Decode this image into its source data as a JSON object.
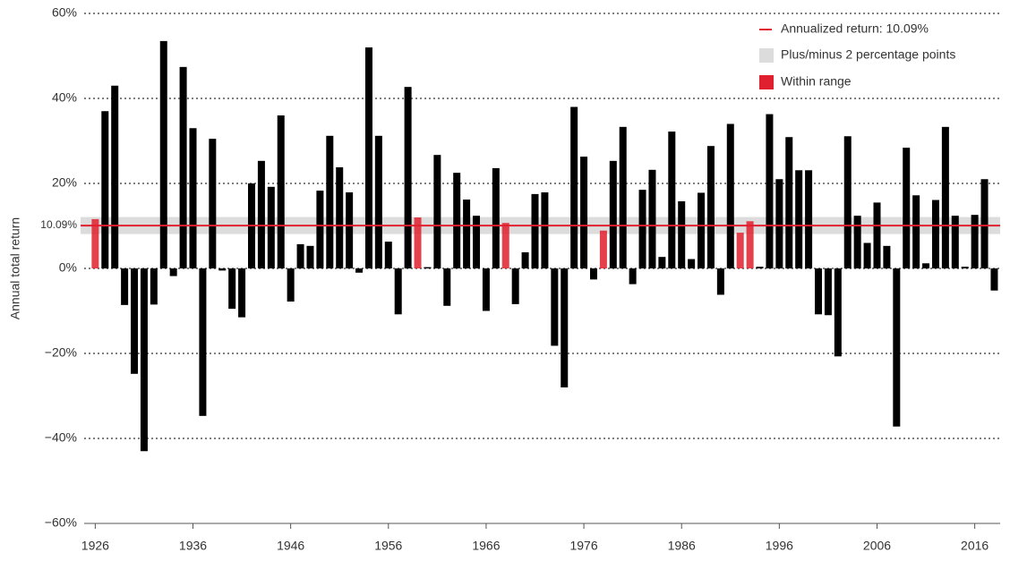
{
  "chart_data": {
    "type": "bar",
    "y_label": "Annual total return",
    "x": [
      1926,
      1927,
      1928,
      1929,
      1930,
      1931,
      1932,
      1933,
      1934,
      1935,
      1936,
      1937,
      1938,
      1939,
      1940,
      1941,
      1942,
      1943,
      1944,
      1945,
      1946,
      1947,
      1948,
      1949,
      1950,
      1951,
      1952,
      1953,
      1954,
      1955,
      1956,
      1957,
      1958,
      1959,
      1960,
      1961,
      1962,
      1963,
      1964,
      1965,
      1966,
      1967,
      1968,
      1969,
      1970,
      1971,
      1972,
      1973,
      1974,
      1975,
      1976,
      1977,
      1978,
      1979,
      1980,
      1981,
      1982,
      1983,
      1984,
      1985,
      1986,
      1987,
      1988,
      1989,
      1990,
      1991,
      1992,
      1993,
      1994,
      1995,
      1996,
      1997,
      1998,
      1999,
      2000,
      2001,
      2002,
      2003,
      2004,
      2005,
      2006,
      2007,
      2008,
      2009,
      2010,
      2011,
      2012,
      2013,
      2014,
      2015,
      2016,
      2017,
      2018
    ],
    "values": [
      11.6,
      37,
      43,
      -8.6,
      -24.8,
      -43,
      -8.5,
      53.5,
      -1.8,
      47.4,
      33,
      -34.7,
      30.5,
      -0.5,
      -9.5,
      -11.5,
      20,
      25.3,
      19.2,
      36,
      -7.8,
      5.7,
      5.3,
      18.3,
      31.2,
      23.8,
      17.9,
      -1,
      52,
      31.2,
      6.3,
      -10.8,
      42.7,
      12,
      0.3,
      26.7,
      -8.8,
      22.5,
      16.2,
      12.4,
      -10,
      23.6,
      10.7,
      -8.4,
      3.8,
      17.5,
      17.9,
      -18.2,
      -28,
      38,
      26.3,
      -2.6,
      8.9,
      25.3,
      33.3,
      -3.7,
      18.5,
      23.2,
      2.7,
      32.2,
      15.8,
      2.2,
      17.8,
      28.8,
      -6.2,
      34,
      8.4,
      11.1,
      0.4,
      36.3,
      21,
      30.9,
      23.1,
      23.1,
      -10.8,
      -11,
      -20.7,
      31.1,
      12.4,
      6,
      15.5,
      5.3,
      -37.2,
      28.4,
      17.2,
      1.2,
      16.1,
      33.3,
      12.4,
      0.4,
      12.6,
      21,
      -5.2
    ],
    "bar_color": "#000000",
    "highlight_color": "#e0202e",
    "annualized_return": {
      "value": 10.09,
      "label": "10.09%"
    },
    "band_halfwidth": 2,
    "band_color": "#dcdcdc",
    "line_color": "#e0202e",
    "legend": [
      "Annualized return:  10.09%",
      "Plus/minus 2 percentage points",
      "Within range"
    ],
    "legend_position": "top-right",
    "xlim": [
      1924.5,
      2018.6
    ],
    "xticks": [
      1926,
      1936,
      1946,
      1956,
      1966,
      1976,
      1986,
      1996,
      2006,
      2016
    ],
    "ylim": [
      -60,
      60
    ],
    "yticks": [
      {
        "value": -60,
        "label": "−60%"
      },
      {
        "value": -40,
        "label": "−40%"
      },
      {
        "value": -20,
        "label": "−20%"
      },
      {
        "value": 0,
        "label": "0%"
      },
      {
        "value": 20,
        "label": "20%"
      },
      {
        "value": 40,
        "label": "40%"
      },
      {
        "value": 60,
        "label": "60%"
      }
    ],
    "grid": true
  }
}
